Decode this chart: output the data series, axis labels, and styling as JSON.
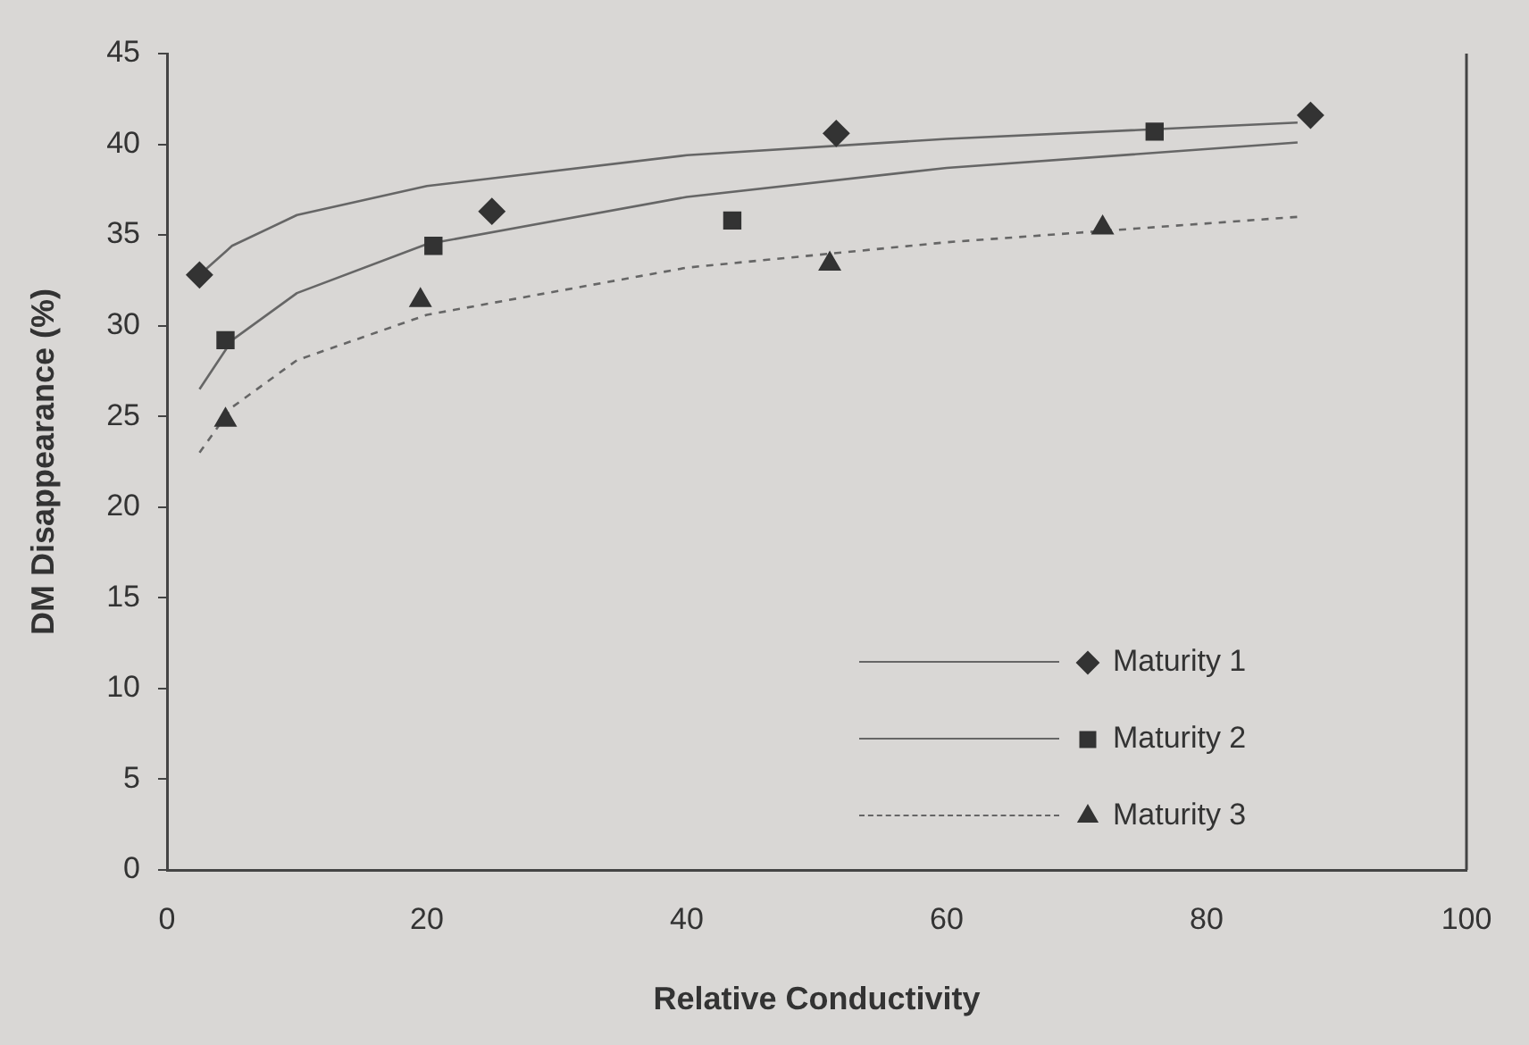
{
  "chart_data": {
    "type": "scatter",
    "xlabel": "Relative Conductivity",
    "ylabel": "DM Disappearance (%)",
    "xlim": [
      0,
      100
    ],
    "xticks": [
      0,
      20,
      40,
      60,
      80,
      100
    ],
    "ylim": [
      0,
      45
    ],
    "yticks": [
      0,
      5,
      10,
      15,
      20,
      25,
      30,
      35,
      40,
      45
    ],
    "grid": false,
    "legend": "bottom right",
    "series": [
      {
        "name": "Maturity 1",
        "marker": "diamond",
        "color": "#333333",
        "x": [
          2.5,
          25,
          51.5,
          88
        ],
        "values": [
          32.8,
          36.3,
          40.6,
          41.6
        ]
      },
      {
        "name": "Maturity 2",
        "marker": "square",
        "color": "#333333",
        "x": [
          4.5,
          20.5,
          43.5,
          76
        ],
        "values": [
          29.2,
          34.4,
          35.8,
          40.7
        ]
      },
      {
        "name": "Maturity 3",
        "marker": "triangle",
        "color": "#333333",
        "x": [
          4.5,
          19.5,
          51,
          72
        ],
        "values": [
          24.8,
          31.4,
          33.4,
          35.4
        ]
      },
      {
        "type": "line",
        "line_style": "solid",
        "color": "#666666",
        "x": [
          2.5,
          5,
          10,
          20,
          40,
          60,
          87
        ],
        "values": [
          32.8,
          34.4,
          36.1,
          37.7,
          39.4,
          40.3,
          41.2
        ]
      },
      {
        "type": "line",
        "line_style": "solid",
        "color": "#666666",
        "x": [
          2.5,
          5,
          10,
          20,
          40,
          60,
          87
        ],
        "values": [
          26.5,
          29.2,
          31.8,
          34.5,
          37.1,
          38.7,
          40.1
        ]
      },
      {
        "type": "line",
        "line_style": "dashed",
        "color": "#666666",
        "x": [
          2.5,
          5,
          10,
          20,
          40,
          60,
          87
        ],
        "values": [
          23.0,
          25.5,
          28.1,
          30.6,
          33.2,
          34.6,
          36.0
        ]
      }
    ]
  }
}
